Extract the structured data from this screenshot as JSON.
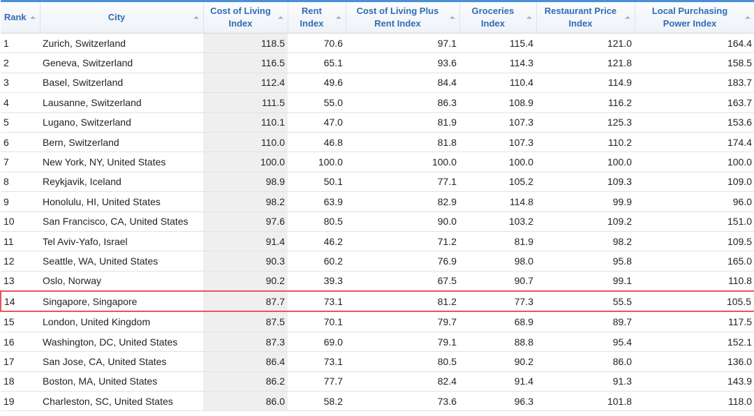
{
  "table": {
    "columns": [
      "Rank",
      "City",
      "Cost of Living Index",
      "Rent Index",
      "Cost of Living Plus Rent Index",
      "Groceries Index",
      "Restaurant Price Index",
      "Local Purchasing Power Index"
    ],
    "rows": [
      [
        "1",
        "Zurich, Switzerland",
        "118.5",
        "70.6",
        "97.1",
        "115.4",
        "121.0",
        "164.4"
      ],
      [
        "2",
        "Geneva, Switzerland",
        "116.5",
        "65.1",
        "93.6",
        "114.3",
        "121.8",
        "158.5"
      ],
      [
        "3",
        "Basel, Switzerland",
        "112.4",
        "49.6",
        "84.4",
        "110.4",
        "114.9",
        "183.7"
      ],
      [
        "4",
        "Lausanne, Switzerland",
        "111.5",
        "55.0",
        "86.3",
        "108.9",
        "116.2",
        "163.7"
      ],
      [
        "5",
        "Lugano, Switzerland",
        "110.1",
        "47.0",
        "81.9",
        "107.3",
        "125.3",
        "153.6"
      ],
      [
        "6",
        "Bern, Switzerland",
        "110.0",
        "46.8",
        "81.8",
        "107.3",
        "110.2",
        "174.4"
      ],
      [
        "7",
        "New York, NY, United States",
        "100.0",
        "100.0",
        "100.0",
        "100.0",
        "100.0",
        "100.0"
      ],
      [
        "8",
        "Reykjavik, Iceland",
        "98.9",
        "50.1",
        "77.1",
        "105.2",
        "109.3",
        "109.0"
      ],
      [
        "9",
        "Honolulu, HI, United States",
        "98.2",
        "63.9",
        "82.9",
        "114.8",
        "99.9",
        "96.0"
      ],
      [
        "10",
        "San Francisco, CA, United States",
        "97.6",
        "80.5",
        "90.0",
        "103.2",
        "109.2",
        "151.0"
      ],
      [
        "11",
        "Tel Aviv-Yafo, Israel",
        "91.4",
        "46.2",
        "71.2",
        "81.9",
        "98.2",
        "109.5"
      ],
      [
        "12",
        "Seattle, WA, United States",
        "90.3",
        "60.2",
        "76.9",
        "98.0",
        "95.8",
        "165.0"
      ],
      [
        "13",
        "Oslo, Norway",
        "90.2",
        "39.3",
        "67.5",
        "90.7",
        "99.1",
        "110.8"
      ],
      [
        "14",
        "Singapore, Singapore",
        "87.7",
        "73.1",
        "81.2",
        "77.3",
        "55.5",
        "105.5"
      ],
      [
        "15",
        "London, United Kingdom",
        "87.5",
        "70.1",
        "79.7",
        "68.9",
        "89.7",
        "117.5"
      ],
      [
        "16",
        "Washington, DC, United States",
        "87.3",
        "69.0",
        "79.1",
        "88.8",
        "95.4",
        "152.1"
      ],
      [
        "17",
        "San Jose, CA, United States",
        "86.4",
        "73.1",
        "80.5",
        "90.2",
        "86.0",
        "136.0"
      ],
      [
        "18",
        "Boston, MA, United States",
        "86.2",
        "77.7",
        "82.4",
        "91.4",
        "91.3",
        "143.9"
      ],
      [
        "19",
        "Charleston, SC, United States",
        "86.0",
        "58.2",
        "73.6",
        "96.3",
        "101.8",
        "118.0"
      ]
    ]
  }
}
